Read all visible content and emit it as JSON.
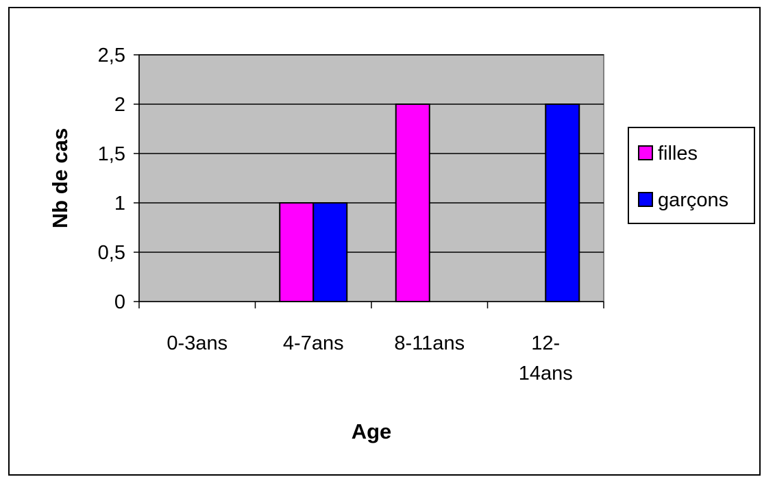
{
  "chart_data": {
    "type": "bar",
    "categories": [
      "0-3ans",
      "4-7ans",
      "8-11ans",
      "12-14ans"
    ],
    "category_label_lines": [
      [
        "0-3ans"
      ],
      [
        "4-7ans"
      ],
      [
        "8-11ans"
      ],
      [
        "12-",
        "14ans"
      ]
    ],
    "series": [
      {
        "name": "filles",
        "values": [
          0,
          1,
          2,
          0
        ],
        "color": "#ff00ff"
      },
      {
        "name": "garçons",
        "values": [
          0,
          1,
          0,
          2
        ],
        "color": "#0000ff"
      }
    ],
    "xlabel": "Age",
    "ylabel": "Nb de cas",
    "ylim": [
      0,
      2.5
    ],
    "yticks": [
      0,
      0.5,
      1,
      1.5,
      2,
      2.5
    ],
    "ytick_labels": [
      "0",
      "0,5",
      "1",
      "1,5",
      "2",
      "2,5"
    ],
    "plot_background": "#c0c0c0",
    "grid": true,
    "legend_position": "right"
  }
}
